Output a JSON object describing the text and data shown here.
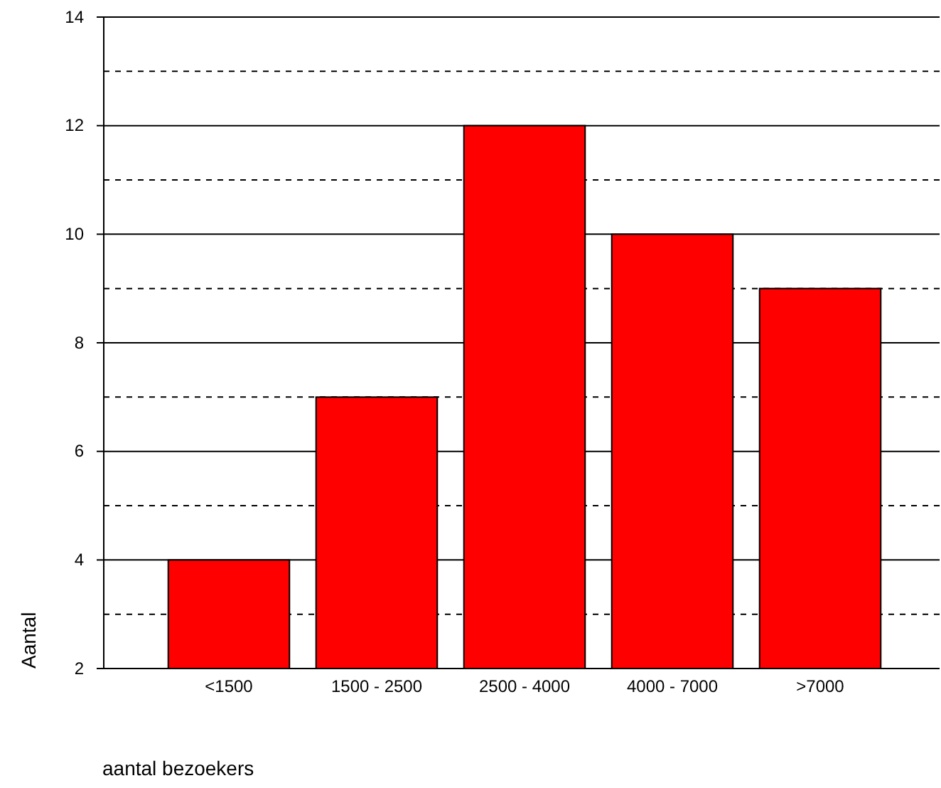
{
  "chart_data": {
    "type": "bar",
    "xlabel": "aantal bezoekers",
    "ylabel": "Aantal",
    "categories": [
      "<1500",
      "1500 - 2500",
      "2500 - 4000",
      "4000 - 7000",
      ">7000"
    ],
    "values": [
      4,
      7,
      12,
      10,
      9
    ],
    "color": "#ff0000",
    "ylim": [
      2,
      14
    ],
    "yticks": [
      2,
      {
        "value": 3,
        "label": null
      },
      4,
      {
        "value": 5,
        "label": null
      },
      6,
      {
        "value": 7,
        "label": null
      },
      8,
      {
        "value": 9,
        "label": null
      },
      10,
      {
        "value": 11,
        "label": null
      },
      12,
      {
        "value": 13,
        "label": null
      },
      14
    ],
    "grid": "y"
  }
}
